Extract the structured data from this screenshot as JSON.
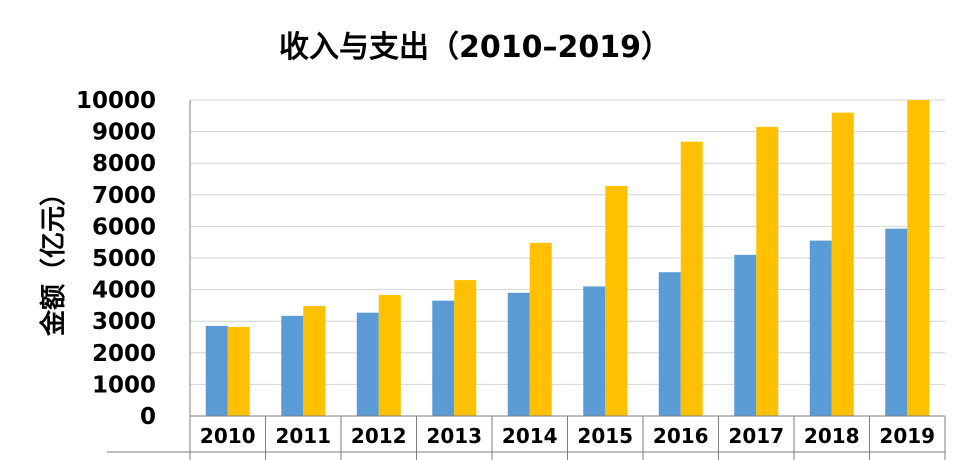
{
  "chart_data": {
    "type": "bar",
    "title": "收入与支出（2010–2019）",
    "ylabel": "金额（亿元）",
    "xlabel": "",
    "categories": [
      "2010",
      "2011",
      "2012",
      "2013",
      "2014",
      "2015",
      "2016",
      "2017",
      "2018",
      "2019"
    ],
    "series": [
      {
        "color": "#5b9bd5",
        "values": [
          2850,
          3170,
          3270,
          3650,
          3900,
          4100,
          4550,
          5100,
          5550,
          5930
        ]
      },
      {
        "color": "#ffc000",
        "values": [
          2820,
          3480,
          3830,
          4300,
          5480,
          7280,
          8680,
          9150,
          9600,
          10000
        ]
      }
    ],
    "ylim": [
      0,
      10000
    ],
    "yticks": [
      0,
      1000,
      2000,
      3000,
      4000,
      5000,
      6000,
      7000,
      8000,
      9000,
      10000
    ],
    "grid": true,
    "legend": "none"
  }
}
